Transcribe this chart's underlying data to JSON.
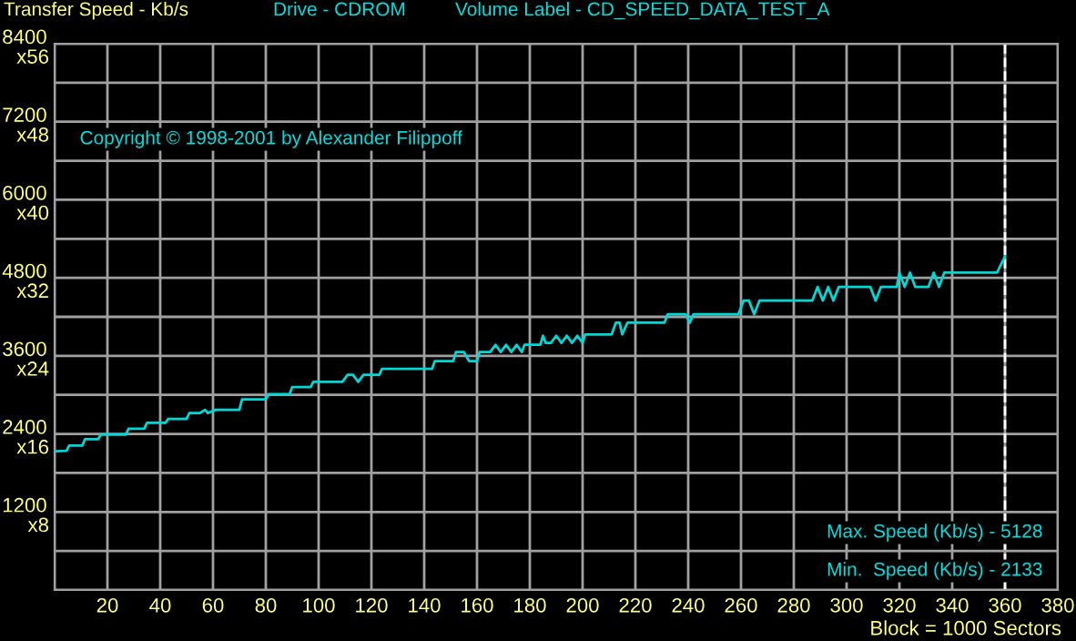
{
  "chart_data": {
    "type": "line",
    "ylabel": "Transfer Speed - Kb/s",
    "xlabel": "Block = 1000 Sectors",
    "annotations": [
      "Drive - CDROM",
      "Volume Label - CD_SPEED_DATA_TEST_A",
      "Copyright © 1998-2001 by Alexander Filippoff",
      "Max. Speed (Kb/s) - 5128",
      "Min.  Speed (Kb/s) - 2133",
      "x8",
      "x16",
      "x24",
      "x32",
      "x40",
      "x48",
      "x56"
    ],
    "series": [
      {
        "color": "#00d8d8",
        "x": [
          0.5,
          4.5,
          5.5,
          10.5,
          11.5,
          16.5,
          17.5,
          27,
          28,
          34,
          35,
          42,
          43,
          50,
          51,
          55,
          57,
          58,
          61,
          70,
          71,
          80,
          81,
          89,
          90,
          97,
          98,
          109,
          111,
          113,
          115,
          117,
          123,
          124,
          143,
          144,
          151,
          152,
          155,
          157,
          160,
          161,
          165,
          167,
          169,
          171,
          173,
          175,
          177,
          178,
          184,
          185,
          186,
          188,
          190,
          192,
          194,
          196,
          198,
          200,
          201,
          211,
          212.6,
          214,
          215,
          217,
          231,
          232.2,
          239,
          240.6,
          242,
          259,
          261,
          263,
          265,
          267,
          287,
          289,
          291,
          293,
          295,
          297,
          309,
          311,
          313,
          319,
          320,
          322,
          324,
          326,
          331,
          333,
          335,
          337,
          357,
          360
        ],
        "values": [
          2133,
          2140,
          2220,
          2220,
          2320,
          2320,
          2390,
          2390,
          2480,
          2480,
          2570,
          2570,
          2630,
          2630,
          2720,
          2720,
          2770,
          2720,
          2770,
          2770,
          2930,
          2930,
          3010,
          3010,
          3120,
          3120,
          3200,
          3200,
          3310,
          3310,
          3200,
          3310,
          3310,
          3400,
          3400,
          3520,
          3520,
          3660,
          3660,
          3520,
          3520,
          3660,
          3660,
          3770,
          3660,
          3770,
          3660,
          3770,
          3660,
          3770,
          3770,
          3910,
          3800,
          3800,
          3910,
          3800,
          3910,
          3800,
          3910,
          3800,
          3930,
          3930,
          4110,
          4110,
          3930,
          4110,
          4110,
          4240,
          4240,
          4110,
          4240,
          4240,
          4450,
          4450,
          4240,
          4450,
          4450,
          4660,
          4450,
          4660,
          4450,
          4660,
          4660,
          4450,
          4660,
          4660,
          4880,
          4660,
          4880,
          4660,
          4660,
          4880,
          4660,
          4880,
          4880,
          5128
        ]
      }
    ],
    "xlim": [
      0,
      380
    ],
    "xticks": [
      {
        "value": 0,
        "label": null
      },
      20,
      40,
      60,
      80,
      100,
      120,
      140,
      160,
      180,
      200,
      220,
      240,
      260,
      280,
      300,
      320,
      340,
      360,
      380
    ],
    "ylim": [
      0,
      8400
    ],
    "yticks": [
      {
        "value": 0,
        "label": null
      },
      {
        "value": 600,
        "label": null
      },
      1200,
      {
        "value": 1800,
        "label": null
      },
      2400,
      {
        "value": 3000,
        "label": null
      },
      3600,
      {
        "value": 4200,
        "label": null
      },
      4800,
      {
        "value": 5400,
        "label": null
      },
      6000,
      {
        "value": 6600,
        "label": null
      },
      7200,
      {
        "value": 7800,
        "label": null
      },
      8400
    ],
    "ref_lines": [
      {
        "axis": "x",
        "value": 360,
        "color": "#ffffff",
        "line_style": "dashed"
      }
    ],
    "grid": true,
    "marker": "none",
    "line_style": "solid"
  }
}
